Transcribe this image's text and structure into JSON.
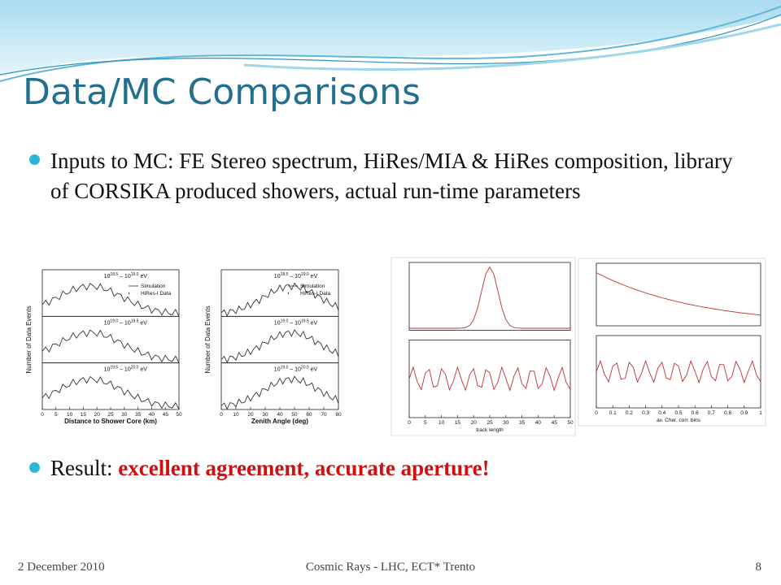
{
  "slide": {
    "title": "Data/MC Comparisons",
    "bullet_1": "Inputs to MC: FE Stereo spectrum, HiRes/MIA & HiRes composition, library of CORSIKA produced showers, actual run-time parameters",
    "bullet_2": {
      "prefix": "Result: ",
      "highlight": "excellent agreement, accurate aperture!"
    },
    "figures": [
      {
        "x_label": "Distance to Shower Core (km)",
        "y_label": "Number of Data Events",
        "legend": [
          "Simulation",
          "HiRes-I Data"
        ],
        "panels": [
          [
            "10",
            "18.5",
            "–",
            "10",
            "19.0",
            "eV"
          ],
          [
            "10",
            "19.0",
            "–",
            "10",
            "19.5",
            "eV"
          ],
          [
            "10",
            "19.5",
            "–",
            "10",
            "20.0",
            "eV"
          ]
        ],
        "xlim": [
          0,
          50
        ],
        "xticks": [
          0,
          5,
          10,
          15,
          20,
          25,
          30,
          35,
          40,
          45,
          50
        ]
      },
      {
        "x_label": "Zenith Angle (deg)",
        "y_label": "Number of Data Events",
        "legend": [
          "Simulation",
          "HiRes-I Data"
        ],
        "panels": [
          [
            "10",
            "18.5",
            "–",
            "10",
            "19.0",
            "eV"
          ],
          [
            "10",
            "19.0",
            "–",
            "10",
            "19.5",
            "eV"
          ],
          [
            "10",
            "19.5",
            "–",
            "10",
            "20.0",
            "eV"
          ]
        ],
        "xlim": [
          0,
          80
        ],
        "xticks": [
          0,
          10,
          20,
          30,
          40,
          50,
          60,
          70,
          80
        ]
      },
      {
        "x_label": "track length",
        "xlim": [
          0,
          50
        ],
        "xticks": [
          0,
          5,
          10,
          15,
          20,
          25,
          30,
          35,
          40,
          45,
          50
        ]
      },
      {
        "x_label": "av. Cher. corr. bins",
        "xlim": [
          0,
          1
        ],
        "xticks": [
          0,
          0.1,
          0.2,
          0.3,
          0.4,
          0.5,
          0.6,
          0.7,
          0.8,
          0.9,
          1
        ]
      }
    ],
    "footer": {
      "date": "2 December 2010",
      "center": "Cosmic Rays - LHC, ECT* Trento",
      "page": "8"
    }
  }
}
